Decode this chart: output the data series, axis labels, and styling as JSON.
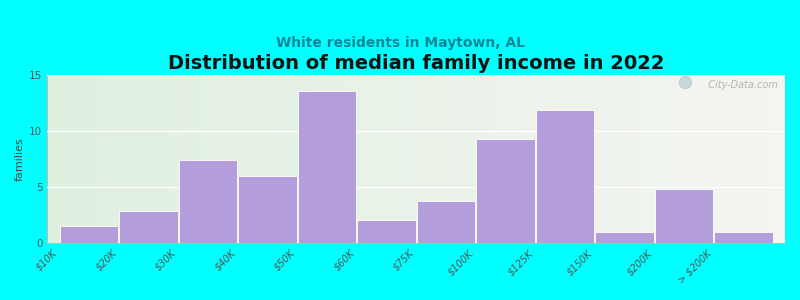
{
  "title": "Distribution of median family income in 2022",
  "subtitle": "White residents in Maytown, AL",
  "ylabel": "families",
  "background_color": "#00FFFF",
  "bar_color": "#b39ddb",
  "bar_edge_color": "#ffffff",
  "categories": [
    "$10K",
    "$20K",
    "$30K",
    "$40K",
    "$50K",
    "$60K",
    "$75K",
    "$100K",
    "$125K",
    "$150K",
    "$200K",
    "> $200K"
  ],
  "values": [
    1.5,
    2.8,
    7.4,
    6.0,
    13.5,
    2.0,
    3.7,
    9.3,
    11.8,
    1.0,
    4.8,
    1.0
  ],
  "ylim": [
    0,
    15
  ],
  "yticks": [
    0,
    5,
    10,
    15
  ],
  "title_fontsize": 14,
  "subtitle_fontsize": 10,
  "ylabel_fontsize": 8,
  "tick_fontsize": 7,
  "watermark": "  City-Data.com"
}
